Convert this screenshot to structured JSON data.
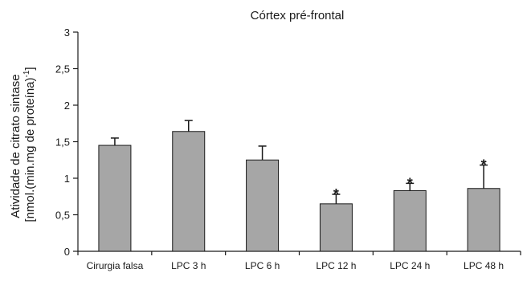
{
  "colors": {
    "bar_fill": "#a6a6a6",
    "bar_stroke": "#1a1a1a",
    "axis": "#1a1a1a"
  },
  "chart_data": {
    "type": "bar",
    "title": "Córtex pré-frontal",
    "ylabel_line1": "Atividade de citrato sintase",
    "ylabel_line2_main": "[nmol.(min.mg de proteína)",
    "ylabel_line2_sup": "-1",
    "ylabel_line2_end": "]",
    "xlabel": "",
    "ylim": [
      0,
      3
    ],
    "yticks": [
      0,
      0.5,
      1,
      1.5,
      2,
      2.5,
      3
    ],
    "ytick_labels": [
      "0",
      "0,5",
      "1",
      "1,5",
      "2",
      "2,5",
      "3"
    ],
    "categories": [
      "Cirurgia falsa",
      "LPC 3 h",
      "LPC 6 h",
      "LPC 12 h",
      "LPC 24 h",
      "LPC 48 h"
    ],
    "values": [
      1.45,
      1.64,
      1.25,
      0.65,
      0.83,
      0.86
    ],
    "errors": [
      0.1,
      0.15,
      0.19,
      0.13,
      0.1,
      0.32
    ],
    "significance": [
      "",
      "",
      "",
      "*",
      "*",
      "*"
    ],
    "grid": false,
    "legend": "none"
  }
}
